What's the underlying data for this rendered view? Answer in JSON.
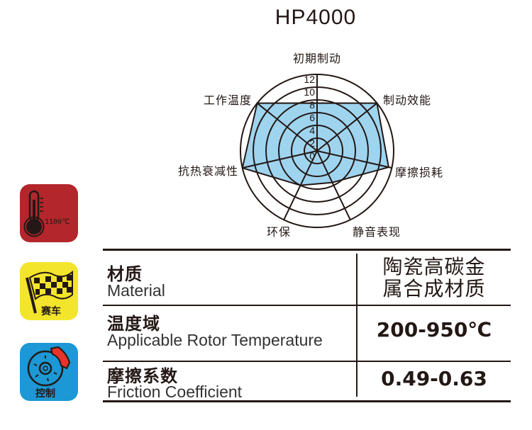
{
  "title": "HP4000",
  "chart_data": {
    "type": "radar",
    "axes": [
      "初期制动",
      "制动效能",
      "摩擦损耗",
      "静音表现",
      "环保",
      "抗热衰减性",
      "工作温度"
    ],
    "values": [
      7.5,
      12,
      11.5,
      5.5,
      6,
      12,
      12
    ],
    "rlim": [
      0,
      12
    ],
    "ticks": [
      "0",
      "2",
      "4",
      "6",
      "8",
      "10",
      "12"
    ],
    "fill_color": "#9fd4ef",
    "line_color": "#231815"
  },
  "badges": [
    {
      "name": "temperature",
      "text": "1100℃",
      "color": "#b3262c"
    },
    {
      "name": "racing",
      "text": "赛车",
      "color": "#f3e52b"
    },
    {
      "name": "control",
      "text": "控制",
      "color": "#1b98d5"
    }
  ],
  "specs": [
    {
      "label_cn": "材质",
      "label_en": "Material",
      "value_lines": [
        "陶瓷高碳金",
        "属合成材质"
      ]
    },
    {
      "label_cn": "温度域",
      "label_en": "Applicable Rotor Temperature",
      "value": "200-950℃"
    },
    {
      "label_cn": "摩擦系数",
      "label_en": "Friction Coefficient",
      "value": "0.49-0.63"
    }
  ]
}
